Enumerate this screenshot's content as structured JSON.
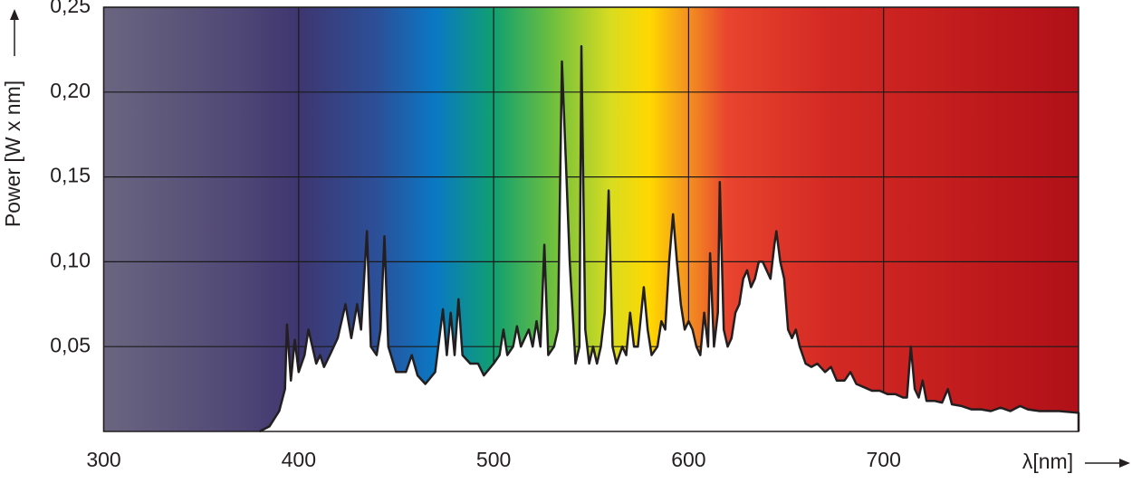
{
  "chart_data": {
    "type": "area",
    "y_label": "Power [W x nm]",
    "x_label": "λ[nm]",
    "color": "#231f20",
    "fill": "#ffffff",
    "grid": true,
    "xlim": [
      300,
      800
    ],
    "xticks": [
      300,
      400,
      500,
      600,
      700
    ],
    "ylim": [
      0,
      0.25
    ],
    "yticks": [
      {
        "value": 0.05,
        "label": "0,05"
      },
      {
        "value": 0.1,
        "label": "0,10"
      },
      {
        "value": 0.15,
        "label": "0,15"
      },
      {
        "value": 0.2,
        "label": "0,20"
      },
      {
        "value": 0.25,
        "label": "0,25"
      }
    ],
    "x": [
      380,
      385,
      390,
      393,
      394,
      396,
      398,
      400,
      403,
      405,
      407,
      409,
      411,
      413,
      416,
      420,
      424,
      427,
      430,
      432,
      435,
      437,
      440,
      442,
      444,
      446,
      450,
      455,
      458,
      461,
      465,
      470,
      474,
      476,
      478,
      480,
      482,
      484,
      488,
      492,
      495,
      500,
      503,
      505,
      507,
      510,
      512,
      514,
      516,
      518,
      520,
      522,
      524,
      526,
      528,
      531,
      533,
      535,
      537,
      539,
      541,
      542,
      544,
      545,
      547,
      549,
      551,
      553,
      555,
      557,
      559,
      561,
      563,
      566,
      568,
      570,
      572,
      574,
      577,
      579,
      581,
      584,
      586,
      588,
      590,
      592,
      594,
      596,
      598,
      600,
      602,
      604,
      606,
      608,
      610,
      611,
      613,
      615,
      616,
      618,
      620,
      622,
      624,
      626,
      628,
      630,
      632,
      634,
      636,
      638,
      640,
      642,
      644,
      645,
      647,
      649,
      651,
      653,
      655,
      657,
      660,
      663,
      666,
      670,
      673,
      676,
      680,
      683,
      686,
      690,
      694,
      698,
      702,
      706,
      710,
      712,
      714,
      716,
      718,
      720,
      722,
      726,
      730,
      733,
      735,
      740,
      745,
      750,
      755,
      760,
      765,
      770,
      774,
      780,
      790,
      800
    ],
    "values": [
      0,
      0.003,
      0.012,
      0.025,
      0.063,
      0.03,
      0.054,
      0.035,
      0.045,
      0.06,
      0.05,
      0.04,
      0.045,
      0.038,
      0.045,
      0.055,
      0.075,
      0.055,
      0.075,
      0.06,
      0.118,
      0.05,
      0.045,
      0.06,
      0.115,
      0.05,
      0.035,
      0.035,
      0.045,
      0.033,
      0.028,
      0.035,
      0.072,
      0.045,
      0.07,
      0.045,
      0.078,
      0.045,
      0.04,
      0.04,
      0.033,
      0.04,
      0.045,
      0.06,
      0.045,
      0.05,
      0.062,
      0.05,
      0.055,
      0.06,
      0.05,
      0.065,
      0.05,
      0.11,
      0.045,
      0.05,
      0.06,
      0.218,
      0.16,
      0.1,
      0.06,
      0.04,
      0.05,
      0.227,
      0.06,
      0.04,
      0.05,
      0.04,
      0.05,
      0.07,
      0.142,
      0.05,
      0.04,
      0.05,
      0.045,
      0.07,
      0.05,
      0.05,
      0.085,
      0.06,
      0.045,
      0.05,
      0.065,
      0.06,
      0.1,
      0.128,
      0.1,
      0.075,
      0.06,
      0.065,
      0.06,
      0.05,
      0.045,
      0.07,
      0.05,
      0.105,
      0.05,
      0.07,
      0.147,
      0.06,
      0.05,
      0.055,
      0.07,
      0.075,
      0.09,
      0.095,
      0.085,
      0.09,
      0.1,
      0.1,
      0.095,
      0.09,
      0.11,
      0.118,
      0.1,
      0.09,
      0.06,
      0.055,
      0.06,
      0.05,
      0.04,
      0.038,
      0.04,
      0.035,
      0.038,
      0.03,
      0.03,
      0.035,
      0.028,
      0.026,
      0.024,
      0.024,
      0.022,
      0.022,
      0.02,
      0.02,
      0.05,
      0.025,
      0.02,
      0.03,
      0.018,
      0.018,
      0.017,
      0.025,
      0.016,
      0.015,
      0.013,
      0.013,
      0.012,
      0.014,
      0.012,
      0.015,
      0.013,
      0.012,
      0.012,
      0.011
    ]
  }
}
